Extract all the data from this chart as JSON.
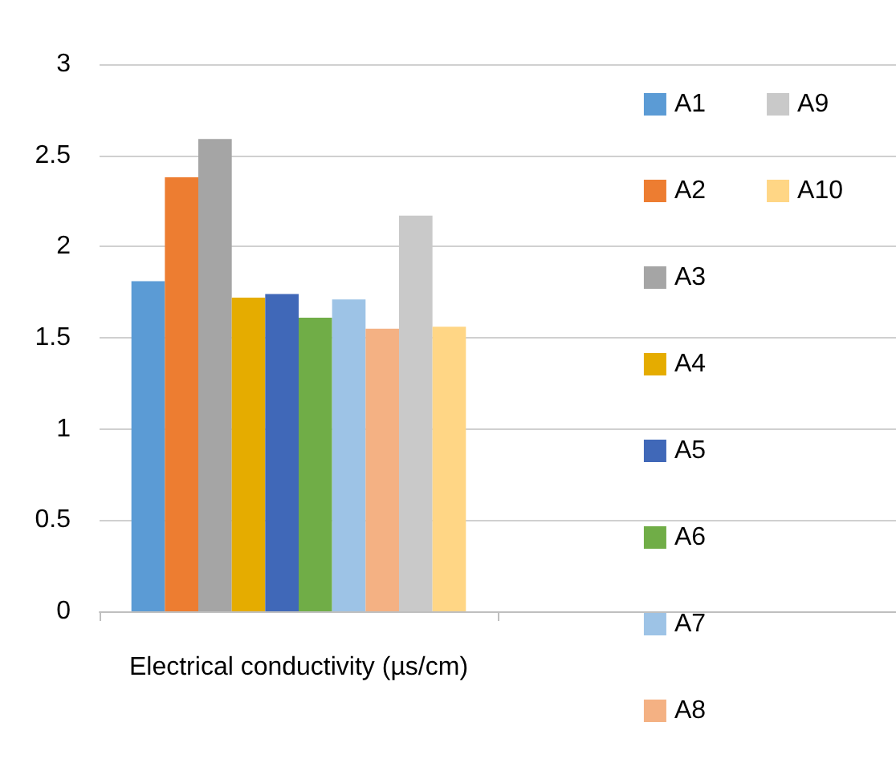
{
  "chart_data": {
    "type": "bar",
    "categories": [
      "Electrical conductivity (µs/cm)",
      null
    ],
    "series": [
      {
        "name": "A1",
        "color": "#5b9bd5",
        "values": [
          1.81,
          null
        ]
      },
      {
        "name": "A2",
        "color": "#ed7d31",
        "values": [
          2.38,
          null
        ]
      },
      {
        "name": "A3",
        "color": "#a5a5a5",
        "values": [
          2.59,
          null
        ]
      },
      {
        "name": "A4",
        "color": "#e5ac00",
        "values": [
          1.72,
          null
        ]
      },
      {
        "name": "A5",
        "color": "#4068b8",
        "values": [
          1.74,
          null
        ]
      },
      {
        "name": "A6",
        "color": "#70ad47",
        "values": [
          1.61,
          null
        ]
      },
      {
        "name": "A7",
        "color": "#9dc3e6",
        "values": [
          1.71,
          null
        ]
      },
      {
        "name": "A8",
        "color": "#f4b183",
        "values": [
          1.55,
          null
        ]
      },
      {
        "name": "A9",
        "color": "#c9c9c9",
        "values": [
          2.17,
          null
        ]
      },
      {
        "name": "A10",
        "color": "#ffd685",
        "values": [
          1.56,
          null
        ]
      }
    ],
    "ylim": [
      0,
      3
    ],
    "yticks": [
      0,
      0.5,
      1,
      1.5,
      2,
      2.5,
      3
    ],
    "grid": "y",
    "legend": "right"
  }
}
